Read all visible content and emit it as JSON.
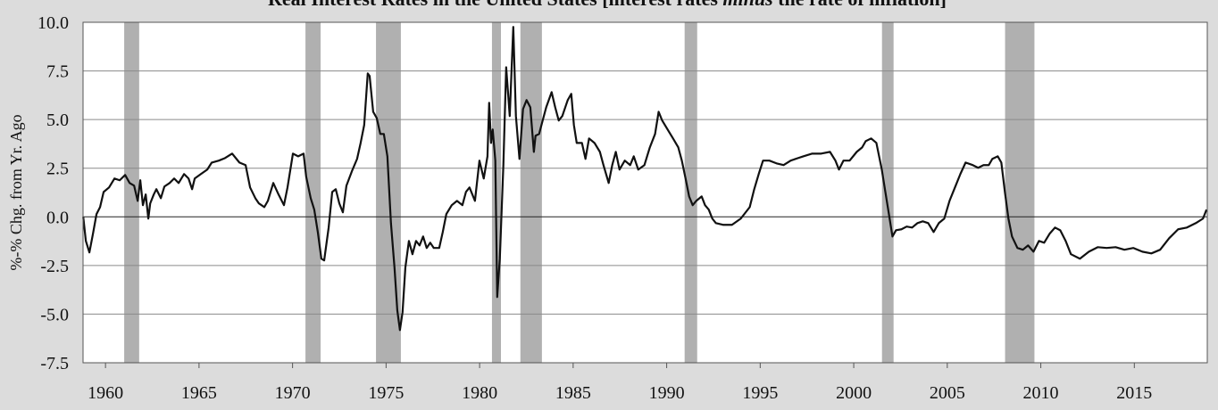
{
  "chart_data": {
    "type": "line",
    "title_parts": [
      "Real Interest Rates in the United States [interest rates ",
      "minus",
      " the rate of inflation]"
    ],
    "y_label": "%-% Chg. from Yr. Ago",
    "xlim": [
      1958.8,
      2018.9
    ],
    "ylim": [
      -7.5,
      10
    ],
    "xticks": [
      1960,
      1965,
      1970,
      1975,
      1980,
      1985,
      1990,
      1995,
      2000,
      2005,
      2010,
      2015
    ],
    "yticks": [
      {
        "value": 10,
        "label": "10.0"
      },
      7.5,
      {
        "value": 5,
        "label": "5.0"
      },
      2.5,
      {
        "value": 0,
        "label": "0.0"
      },
      -2.5,
      {
        "value": -5,
        "label": "-5.0"
      },
      -7.5
    ],
    "grid": true,
    "recession_color": "#b0b0b0",
    "recessions": [
      [
        1961.0,
        1961.8
      ],
      [
        1970.69,
        1971.5
      ],
      [
        1974.46,
        1975.79
      ],
      [
        1980.66,
        1981.14
      ],
      [
        1982.18,
        1983.33
      ],
      [
        1990.96,
        1991.63
      ],
      [
        2001.51,
        2002.13
      ],
      [
        2008.09,
        2009.66
      ]
    ],
    "series": [
      {
        "color": "#111111",
        "x": [
          1958.81,
          1958.95,
          1959.14,
          1959.33,
          1959.52,
          1959.71,
          1959.9,
          1960.19,
          1960.48,
          1960.76,
          1961.05,
          1961.29,
          1961.53,
          1961.72,
          1961.86,
          1962.0,
          1962.15,
          1962.29,
          1962.39,
          1962.58,
          1962.72,
          1962.96,
          1963.15,
          1963.43,
          1963.67,
          1963.91,
          1964.2,
          1964.44,
          1964.63,
          1964.77,
          1965.1,
          1965.44,
          1965.68,
          1966.06,
          1966.39,
          1966.77,
          1967.16,
          1967.49,
          1967.73,
          1968.01,
          1968.2,
          1968.49,
          1968.68,
          1968.97,
          1969.25,
          1969.54,
          1969.73,
          1970.02,
          1970.3,
          1970.59,
          1970.73,
          1970.97,
          1971.16,
          1971.35,
          1971.54,
          1971.69,
          1971.93,
          1972.12,
          1972.31,
          1972.5,
          1972.69,
          1972.88,
          1973.17,
          1973.45,
          1973.64,
          1973.83,
          1974.02,
          1974.12,
          1974.31,
          1974.5,
          1974.69,
          1974.88,
          1975.07,
          1975.26,
          1975.45,
          1975.6,
          1975.74,
          1975.88,
          1976.03,
          1976.22,
          1976.41,
          1976.6,
          1976.79,
          1976.98,
          1977.17,
          1977.36,
          1977.55,
          1977.84,
          1978.03,
          1978.22,
          1978.51,
          1978.79,
          1979.08,
          1979.27,
          1979.46,
          1979.75,
          1979.99,
          1980.22,
          1980.42,
          1980.51,
          1980.61,
          1980.7,
          1980.84,
          1980.94,
          1981.08,
          1981.27,
          1981.42,
          1981.61,
          1981.8,
          1981.94,
          1982.13,
          1982.32,
          1982.51,
          1982.71,
          1982.9,
          1982.99,
          1983.18,
          1983.37,
          1983.56,
          1983.85,
          1984.04,
          1984.23,
          1984.42,
          1984.71,
          1984.9,
          1985.04,
          1985.19,
          1985.47,
          1985.66,
          1985.85,
          1986.14,
          1986.43,
          1986.62,
          1986.9,
          1987.09,
          1987.28,
          1987.48,
          1987.76,
          1988.05,
          1988.24,
          1988.48,
          1988.81,
          1989.1,
          1989.38,
          1989.57,
          1989.76,
          1990.05,
          1990.34,
          1990.62,
          1990.81,
          1991.01,
          1991.2,
          1991.39,
          1991.58,
          1991.87,
          1992.05,
          1992.25,
          1992.44,
          1992.63,
          1993.01,
          1993.49,
          1993.96,
          1994.44,
          1994.68,
          1994.92,
          1995.15,
          1995.49,
          1995.87,
          1996.25,
          1996.63,
          1997.02,
          1997.3,
          1997.78,
          1998.26,
          1998.73,
          1999.02,
          1999.21,
          1999.45,
          1999.78,
          2000.16,
          2000.45,
          2000.64,
          2000.93,
          2001.21,
          2001.5,
          2001.69,
          2001.88,
          2002.07,
          2002.26,
          2002.55,
          2002.83,
          2003.12,
          2003.41,
          2003.69,
          2003.98,
          2004.27,
          2004.55,
          2004.84,
          2005.12,
          2005.41,
          2005.7,
          2005.98,
          2006.36,
          2006.65,
          2006.94,
          2007.22,
          2007.41,
          2007.7,
          2007.89,
          2008.08,
          2008.27,
          2008.46,
          2008.75,
          2009.04,
          2009.32,
          2009.61,
          2009.9,
          2010.18,
          2010.47,
          2010.76,
          2011.04,
          2011.33,
          2011.61,
          2012.09,
          2012.57,
          2013.04,
          2013.52,
          2014.0,
          2014.47,
          2014.95,
          2015.43,
          2015.91,
          2016.38,
          2016.86,
          2017.34,
          2017.81,
          2018.29,
          2018.67,
          2018.86
        ],
        "values": [
          0,
          -1.24,
          -1.83,
          -0.87,
          0.14,
          0.5,
          1.28,
          1.51,
          1.97,
          1.88,
          2.15,
          1.74,
          1.6,
          0.82,
          1.88,
          0.6,
          1.15,
          -0.09,
          0.69,
          1.15,
          1.42,
          0.96,
          1.56,
          1.74,
          1.97,
          1.74,
          2.2,
          1.97,
          1.42,
          1.97,
          2.2,
          2.43,
          2.79,
          2.89,
          3.02,
          3.25,
          2.79,
          2.66,
          1.51,
          0.96,
          0.69,
          0.5,
          0.82,
          1.74,
          1.15,
          0.6,
          1.51,
          3.25,
          3.11,
          3.25,
          2.06,
          0.96,
          0.37,
          -0.78,
          -2.15,
          -2.24,
          -0.55,
          1.28,
          1.42,
          0.69,
          0.23,
          1.6,
          2.34,
          2.98,
          3.8,
          4.72,
          7.37,
          7.24,
          5.4,
          5.08,
          4.26,
          4.26,
          3.11,
          -0.32,
          -2.61,
          -4.81,
          -5.82,
          -4.9,
          -2.61,
          -1.24,
          -1.92,
          -1.24,
          -1.47,
          -1.01,
          -1.6,
          -1.33,
          -1.6,
          -1.6,
          -0.78,
          0.14,
          0.6,
          0.82,
          0.6,
          1.28,
          1.51,
          0.82,
          2.89,
          1.97,
          3.11,
          5.86,
          3.8,
          4.49,
          2.89,
          -4.12,
          -2.15,
          2.66,
          7.69,
          5.18,
          9.76,
          5.18,
          2.98,
          5.54,
          6.0,
          5.63,
          3.34,
          4.17,
          4.26,
          4.95,
          5.63,
          6.41,
          5.63,
          4.95,
          5.18,
          6.0,
          6.32,
          4.72,
          3.8,
          3.8,
          2.98,
          4.03,
          3.8,
          3.34,
          2.66,
          1.74,
          2.66,
          3.34,
          2.43,
          2.89,
          2.66,
          3.11,
          2.43,
          2.66,
          3.57,
          4.26,
          5.4,
          4.95,
          4.49,
          4.03,
          3.57,
          2.89,
          1.97,
          1.05,
          0.6,
          0.82,
          1.05,
          0.6,
          0.37,
          -0.09,
          -0.32,
          -0.41,
          -0.41,
          -0.09,
          0.5,
          1.42,
          2.2,
          2.89,
          2.89,
          2.75,
          2.66,
          2.89,
          3.02,
          3.11,
          3.25,
          3.25,
          3.34,
          2.89,
          2.43,
          2.89,
          2.89,
          3.34,
          3.57,
          3.89,
          4.03,
          3.8,
          2.43,
          1.28,
          0.14,
          -1.01,
          -0.69,
          -0.64,
          -0.5,
          -0.55,
          -0.32,
          -0.23,
          -0.32,
          -0.78,
          -0.32,
          -0.09,
          0.82,
          1.51,
          2.2,
          2.79,
          2.66,
          2.52,
          2.66,
          2.66,
          2.98,
          3.11,
          2.79,
          1.28,
          -0.09,
          -1.01,
          -1.6,
          -1.69,
          -1.47,
          -1.79,
          -1.24,
          -1.33,
          -0.87,
          -0.55,
          -0.69,
          -1.24,
          -1.92,
          -2.15,
          -1.79,
          -1.56,
          -1.6,
          -1.56,
          -1.69,
          -1.6,
          -1.79,
          -1.88,
          -1.69,
          -1.1,
          -0.64,
          -0.55,
          -0.32,
          -0.09,
          0.37
        ]
      }
    ]
  }
}
